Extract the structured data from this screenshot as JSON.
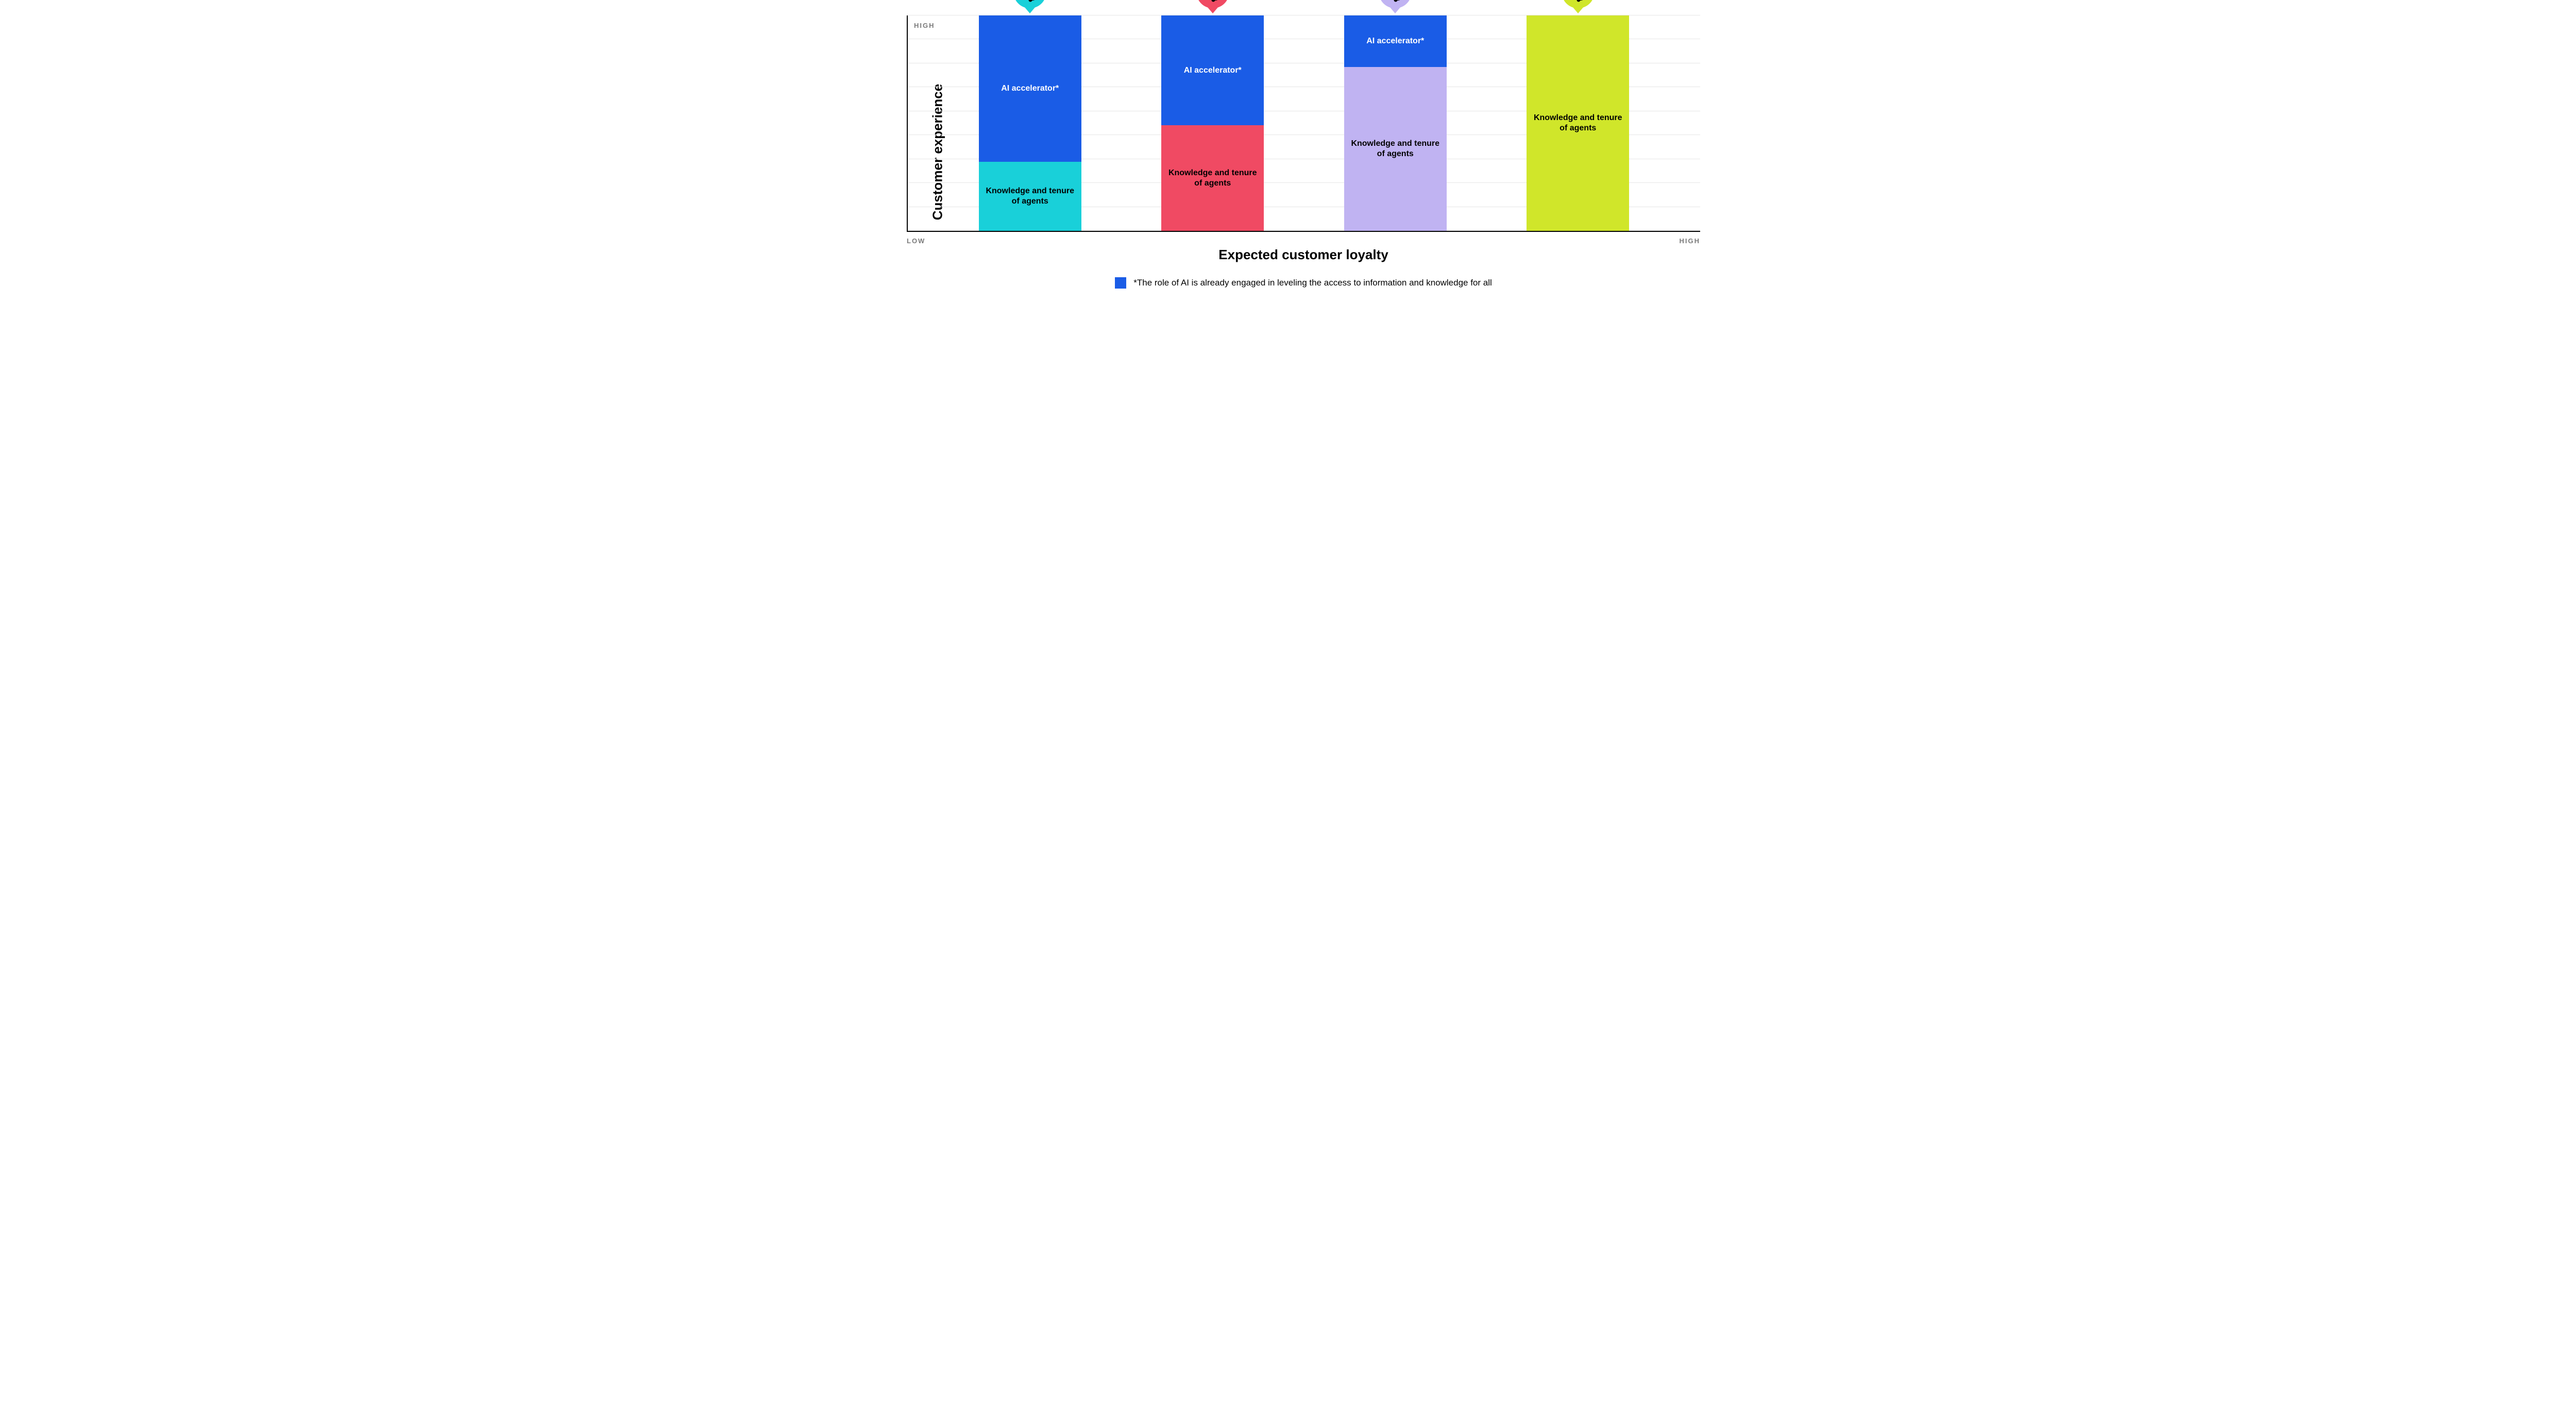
{
  "chart": {
    "type": "stacked-bar",
    "y_axis_label": "Customer experience",
    "x_axis_label": "Expected customer loyalty",
    "y_axis_high": "HIGH",
    "x_axis_low": "LOW",
    "x_axis_high": "HIGH",
    "background_color": "#ffffff",
    "grid_color": "#e6e6e6",
    "axis_color": "#000000",
    "label_color": "#7a7a7a",
    "title_fontsize": 26,
    "scale_fontsize": 13,
    "segment_fontsize": 16,
    "gridline_count": 9,
    "ai_color": "#1a5ce6",
    "bars": [
      {
        "marker_color": "#19d0d9",
        "segments": [
          {
            "key": "ai",
            "label": "AI accelerator*",
            "height_pct": 68,
            "bg": "#1a5ce6",
            "fg": "#ffffff"
          },
          {
            "key": "kt",
            "label": "Knowledge and tenure of agents",
            "height_pct": 32,
            "bg": "#19d0d9",
            "fg": "#000000"
          }
        ]
      },
      {
        "marker_color": "#f04a63",
        "segments": [
          {
            "key": "ai",
            "label": "AI accelerator*",
            "height_pct": 51,
            "bg": "#1a5ce6",
            "fg": "#ffffff"
          },
          {
            "key": "kt",
            "label": "Knowledge and tenure of agents",
            "height_pct": 49,
            "bg": "#f04a63",
            "fg": "#000000"
          }
        ]
      },
      {
        "marker_color": "#c0b3f2",
        "segments": [
          {
            "key": "ai",
            "label": "AI accelerator*",
            "height_pct": 24,
            "bg": "#1a5ce6",
            "fg": "#ffffff"
          },
          {
            "key": "kt",
            "label": "Knowledge and tenure of agents",
            "height_pct": 76,
            "bg": "#c0b3f2",
            "fg": "#000000"
          }
        ]
      },
      {
        "marker_color": "#d0e62a",
        "segments": [
          {
            "key": "kt",
            "label": "Knowledge and tenure of agents",
            "height_pct": 100,
            "bg": "#d0e62a",
            "fg": "#000000"
          }
        ]
      }
    ]
  },
  "footnote": {
    "swatch_color": "#1a5ce6",
    "text": "*The role of AI is already engaged in leveling the access to information and knowledge for all"
  }
}
